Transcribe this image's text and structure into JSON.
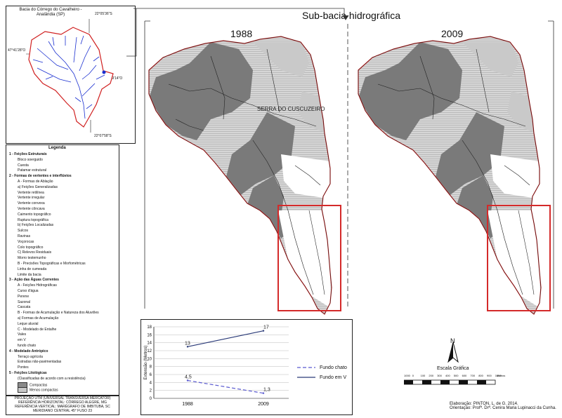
{
  "inset": {
    "title_line1": "Bacia do Córrego do Cavalheiro -",
    "title_line2": "Analândia (SP)",
    "coord_top": "22°05'36\"S",
    "coord_left": "47°41'28\"O",
    "coord_right": "47°39'14\"O",
    "coord_bottom": "22°07'58\"S"
  },
  "main": {
    "title": "Sub-bacia hidrográfica",
    "year_left": "1988",
    "year_right": "2009",
    "place_label": "SERRA DO CUSCUZEIRO"
  },
  "legend": {
    "title": "Legenda",
    "items": [
      {
        "text": "1 - Feições Estruturais",
        "bold": true
      },
      {
        "text": "Bloco soerguido",
        "bold": false
      },
      {
        "text": "Cuesta",
        "bold": false
      },
      {
        "text": "Patamar estrutural",
        "bold": false
      },
      {
        "text": "2 - Formas de vertentes e interflúvios",
        "bold": true
      },
      {
        "text": "A - Formas de Ablação",
        "bold": false
      },
      {
        "text": "a) Feições Generalizadas",
        "bold": false
      },
      {
        "text": "Vertente retilínea",
        "bold": false
      },
      {
        "text": "Vertente irregular",
        "bold": false
      },
      {
        "text": "Vertente convexa",
        "bold": false
      },
      {
        "text": "Vertente côncava",
        "bold": false
      },
      {
        "text": "Caimento topográfico",
        "bold": false
      },
      {
        "text": "Ruptura topográfica",
        "bold": false
      },
      {
        "text": "b) Feições Localizadas",
        "bold": false
      },
      {
        "text": "Sulcos",
        "bold": false
      },
      {
        "text": "Ravinas",
        "bold": false
      },
      {
        "text": "Voçorocas",
        "bold": false
      },
      {
        "text": "Colo topográfico",
        "bold": false
      },
      {
        "text": "C) Relevos Residuais",
        "bold": false
      },
      {
        "text": "Morro testemunho",
        "bold": false
      },
      {
        "text": "B - Precisões Topográficas e Morfométricas",
        "bold": false
      },
      {
        "text": "Linha de cumeada",
        "bold": false
      },
      {
        "text": "Limite da bacia",
        "bold": false
      },
      {
        "text": "3 - Ação das Águas Correntes",
        "bold": true
      },
      {
        "text": "A - Feições Hidrográficas",
        "bold": false
      },
      {
        "text": "Curso d'água",
        "bold": false
      },
      {
        "text": "Perene",
        "bold": false
      },
      {
        "text": "Sazonal",
        "bold": false
      },
      {
        "text": "Cascata",
        "bold": false
      },
      {
        "text": "B - Formas de Acumulação e Natureza dos Aluviões",
        "bold": false
      },
      {
        "text": "a) Formas de Acumulação",
        "bold": false
      },
      {
        "text": "Leque aluvial",
        "bold": false
      },
      {
        "text": "C - Modelado de Entalhe",
        "bold": false
      },
      {
        "text": "Vales",
        "bold": false
      },
      {
        "text": "em V",
        "bold": false
      },
      {
        "text": "fundo chato",
        "bold": false
      },
      {
        "text": "4 - Modelado Antrópico",
        "bold": true
      },
      {
        "text": "Terraço agrícola",
        "bold": false
      },
      {
        "text": "Estradas não-pavimentadas",
        "bold": false
      },
      {
        "text": "Pontes",
        "bold": false
      },
      {
        "text": "5 - Feições Litológicas",
        "bold": true
      },
      {
        "text": "(Classificadas de acordo com a resistência)",
        "bold": false
      },
      {
        "text": "Compactas",
        "bold": false
      },
      {
        "text": "Menos compactas",
        "bold": false
      }
    ],
    "colors": {
      "compactas": "#8a8a8a",
      "menos_compactas": "#c8c8c8"
    }
  },
  "projection": {
    "line1": "PROJEÇÃO UTM (UNIVERSAL TRANSVERSA MERCATOR)",
    "line2": "REFERÊNCIA HORIZONTAL: CÓRREGO ALEGRE, MG",
    "line3": "REFERÊNCIA VERTICAL: MARÉGRAFO DE IMBITUBA, SC",
    "line4": "MERIDIANO CENTRAL 45° FUSO 23"
  },
  "chart_data": {
    "type": "line",
    "x": [
      "1988",
      "2009"
    ],
    "ylabel": "Extensão (Metros)",
    "ylim": [
      0,
      18
    ],
    "yticks": [
      0,
      2,
      4,
      6,
      8,
      10,
      12,
      14,
      16,
      18
    ],
    "series": [
      {
        "name": "Fundo chato",
        "values": [
          4.5,
          1.3
        ],
        "labels": [
          "4,5",
          "1,3"
        ],
        "style": "dashed"
      },
      {
        "name": "Fundo em V",
        "values": [
          13,
          17
        ],
        "labels": [
          "13",
          "17"
        ],
        "style": "solid"
      }
    ],
    "legend": "right"
  },
  "compass": {
    "north": "N"
  },
  "scale": {
    "title": "Escala Gráfica",
    "ticks": [
      "1000",
      "0",
      "100",
      "200",
      "300",
      "400",
      "500",
      "600",
      "700",
      "800",
      "900",
      "1000"
    ],
    "unit": "Metros"
  },
  "credits": {
    "line1": "Elaboração: PINTON, L. de G. 2014.",
    "line2": "Orientação: Profª. Drª. Cenira Maria Lupinacci da Cunha."
  },
  "colors": {
    "dark": "#7a7a7a",
    "light": "#c9c9c9",
    "boundary": "#d02020",
    "river": "#1a2fd0",
    "highlight": "#d42a2a",
    "series_v": "#2a3a78",
    "series_chato": "#5a5ad0"
  }
}
